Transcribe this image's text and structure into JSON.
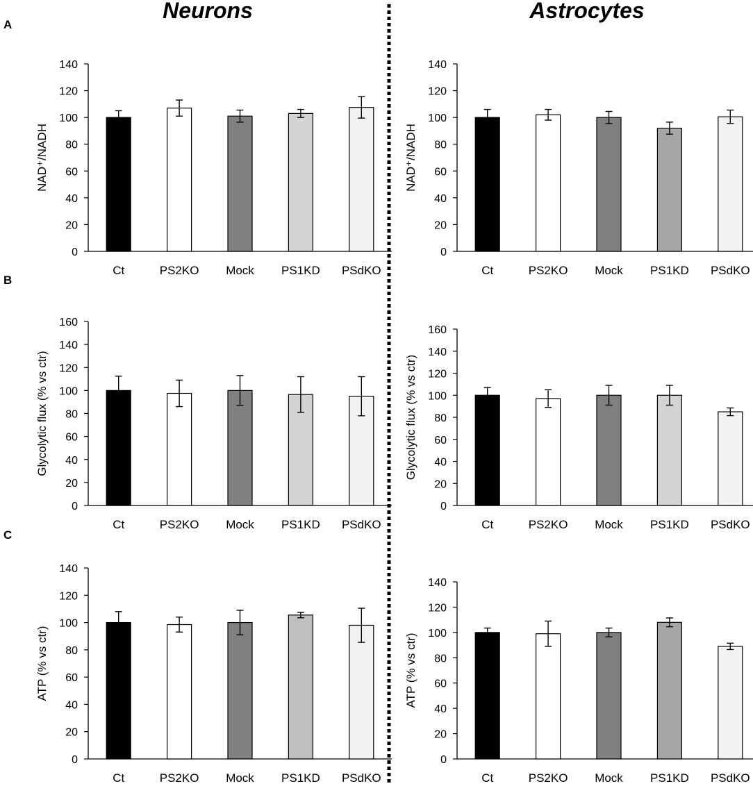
{
  "figure": {
    "col_titles": [
      "Neurons",
      "Astrocytes"
    ],
    "panel_letters": [
      "A",
      "B",
      "C"
    ],
    "bar_colors": [
      "#000000",
      "#ffffff",
      "#808080",
      "#d3d3d3",
      "#f2f2f2"
    ]
  },
  "chart_data": [
    {
      "id": "A-neurons",
      "type": "bar",
      "column": "Neurons",
      "panel": "A",
      "ylabel": "NAD⁺/NADH",
      "xlabel": "",
      "categories": [
        "Ct",
        "PS2KO",
        "Mock",
        "PS1KD",
        "PSdKO"
      ],
      "values": [
        100,
        107,
        101,
        103,
        107.5
      ],
      "errors": [
        5,
        6,
        4.5,
        3,
        8
      ],
      "ylim": [
        0,
        140
      ],
      "yticks": [
        0,
        20,
        40,
        60,
        80,
        100,
        120,
        140
      ],
      "colors": [
        "#000000",
        "#ffffff",
        "#808080",
        "#d3d3d3",
        "#f2f2f2"
      ]
    },
    {
      "id": "A-astrocytes",
      "type": "bar",
      "column": "Astrocytes",
      "panel": "A",
      "ylabel": "NAD⁺/NADH",
      "xlabel": "",
      "categories": [
        "Ct",
        "PS2KO",
        "Mock",
        "PS1KD",
        "PSdKO"
      ],
      "values": [
        100,
        102,
        100,
        92,
        100.5
      ],
      "errors": [
        6,
        4,
        4.5,
        4.5,
        5
      ],
      "ylim": [
        0,
        140
      ],
      "yticks": [
        0,
        20,
        40,
        60,
        80,
        100,
        120,
        140
      ],
      "colors": [
        "#000000",
        "#ffffff",
        "#808080",
        "#a6a6a6",
        "#f2f2f2"
      ]
    },
    {
      "id": "B-neurons",
      "type": "bar",
      "column": "Neurons",
      "panel": "B",
      "ylabel": "Glycolytic flux (% vs ctr)",
      "xlabel": "",
      "categories": [
        "Ct",
        "PS2KO",
        "Mock",
        "PS1KD",
        "PSdKO"
      ],
      "values": [
        100,
        97.5,
        100,
        96.5,
        95
      ],
      "errors": [
        12.5,
        11.5,
        13,
        15.5,
        17
      ],
      "ylim": [
        0,
        160
      ],
      "yticks": [
        0,
        20,
        40,
        60,
        80,
        100,
        120,
        140,
        160
      ],
      "colors": [
        "#000000",
        "#ffffff",
        "#808080",
        "#d3d3d3",
        "#f2f2f2"
      ]
    },
    {
      "id": "B-astrocytes",
      "type": "bar",
      "column": "Astrocytes",
      "panel": "B",
      "ylabel": "Glycolytic flux (% vs ctr)",
      "xlabel": "",
      "categories": [
        "Ct",
        "PS2KO",
        "Mock",
        "PS1KD",
        "PSdKO"
      ],
      "values": [
        100,
        97,
        100,
        100,
        85
      ],
      "errors": [
        7,
        8,
        9,
        9,
        3.5
      ],
      "ylim": [
        0,
        160
      ],
      "yticks": [
        0,
        20,
        40,
        60,
        80,
        100,
        120,
        140,
        160
      ],
      "colors": [
        "#000000",
        "#ffffff",
        "#808080",
        "#d3d3d3",
        "#f2f2f2"
      ]
    },
    {
      "id": "C-neurons",
      "type": "bar",
      "column": "Neurons",
      "panel": "C",
      "ylabel": "ATP (% vs ctr)",
      "xlabel": "",
      "categories": [
        "Ct",
        "PS2KO",
        "Mock",
        "PS1KD",
        "PSdKO"
      ],
      "values": [
        100,
        98.5,
        100,
        105.5,
        98
      ],
      "errors": [
        8,
        5.5,
        9,
        2,
        12.5
      ],
      "ylim": [
        0,
        140
      ],
      "yticks": [
        0,
        20,
        40,
        60,
        80,
        100,
        120,
        140
      ],
      "colors": [
        "#000000",
        "#ffffff",
        "#808080",
        "#bfbfbf",
        "#f2f2f2"
      ]
    },
    {
      "id": "C-astrocytes",
      "type": "bar",
      "column": "Astrocytes",
      "panel": "C",
      "ylabel": "ATP (% vs ctr)",
      "xlabel": "",
      "categories": [
        "Ct",
        "PS2KO",
        "Mock",
        "PS1KD",
        "PSdKO"
      ],
      "values": [
        100,
        99,
        100,
        108,
        89
      ],
      "errors": [
        3.5,
        10,
        3.5,
        3.5,
        2.5
      ],
      "ylim": [
        0,
        140
      ],
      "yticks": [
        0,
        20,
        40,
        60,
        80,
        100,
        120,
        140
      ],
      "colors": [
        "#000000",
        "#ffffff",
        "#808080",
        "#a6a6a6",
        "#f2f2f2"
      ]
    }
  ]
}
